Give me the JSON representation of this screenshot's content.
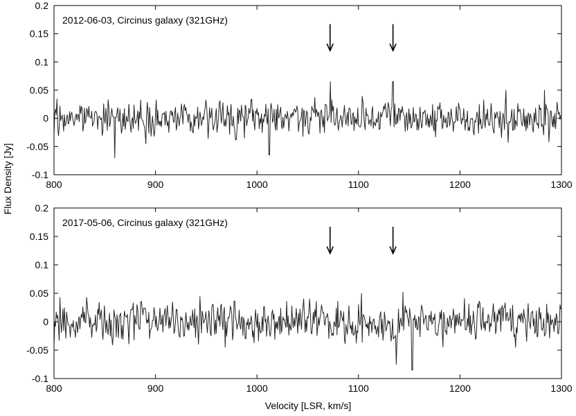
{
  "figure": {
    "ylabel": "Flux Density [Jy]",
    "xlabel": "Velocity [LSR, km/s]"
  },
  "chart_data": [
    {
      "type": "line",
      "title": "2012-06-03, Circinus galaxy (321GHz)",
      "xlim": [
        800,
        1300
      ],
      "ylim": [
        -0.1,
        0.2
      ],
      "xticks": [
        "800",
        "900",
        "1000",
        "1100",
        "1200",
        "1300"
      ],
      "yticks": [
        "-0.1",
        "-0.05",
        "0",
        "0.05",
        "0.1",
        "0.15",
        "0.2"
      ],
      "grid": false,
      "arrows": [
        1072,
        1134
      ],
      "series": [
        {
          "x_start": 800,
          "x_step": 0.73,
          "noise_rms": 0.018,
          "seed": 20120603,
          "peaks": [
            {
              "x": 1072,
              "y": 0.065
            },
            {
              "x": 1134,
              "y": 0.065
            },
            {
              "x": 860,
              "y": -0.07
            },
            {
              "x": 1012,
              "y": -0.065
            }
          ],
          "color": "#222222"
        }
      ]
    },
    {
      "type": "line",
      "title": "2017-05-06, Circinus galaxy (321GHz)",
      "xlim": [
        800,
        1300
      ],
      "ylim": [
        -0.1,
        0.2
      ],
      "xticks": [
        "800",
        "900",
        "1000",
        "1100",
        "1200",
        "1300"
      ],
      "yticks": [
        "-0.1",
        "-0.05",
        "0",
        "0.05",
        "0.1",
        "0.15",
        "0.2"
      ],
      "grid": false,
      "arrows": [
        1072,
        1134
      ],
      "series": [
        {
          "x_start": 800,
          "x_step": 0.73,
          "noise_rms": 0.02,
          "seed": 20170506,
          "peaks": [
            {
              "x": 1153,
              "y": 0.04
            },
            {
              "x": 1153,
              "y": -0.085
            },
            {
              "x": 1137,
              "y": -0.075
            },
            {
              "x": 882,
              "y": 0.03
            }
          ],
          "color": "#222222"
        }
      ]
    }
  ]
}
